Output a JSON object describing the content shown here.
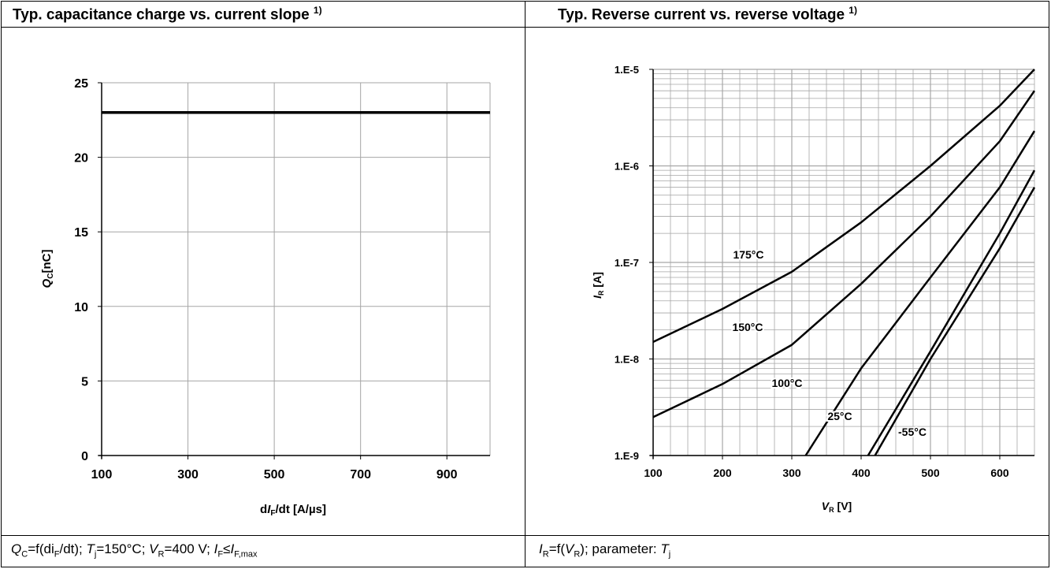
{
  "header": {
    "left_title": "Typ. capacitance charge vs. current slope",
    "left_footnote": "1)",
    "right_title": "Typ. Reverse current vs. reverse voltage",
    "right_footnote": "1)"
  },
  "footer": {
    "left": {
      "q": "Q",
      "q_sub": "C",
      "t1": "=f(di",
      "t1_sub": "F",
      "t2": "/dt); ",
      "tj": "T",
      "tj_sub": "j",
      "t3": "=150°C; ",
      "vr": "V",
      "vr_sub": "R",
      "t4": "=400 V; ",
      "if": "I",
      "if_sub": "F",
      "t5": "≤",
      "ifmax": "I",
      "ifmax_sub": "F,max"
    },
    "right": {
      "ir": "I",
      "ir_sub": "R",
      "t1": "=f(",
      "vr": "V",
      "vr_sub": "R",
      "t2": "); parameter: ",
      "tj": "T",
      "tj_sub": "j"
    }
  },
  "chart_data": [
    {
      "type": "line",
      "xlabel": "dIF/dt [A/µs]",
      "xlabel_parts": {
        "a": "d",
        "b": "I",
        "c": "F",
        "d": "/dt [A/µs]"
      },
      "ylabel": "QC[nC]",
      "ylabel_parts": {
        "a": "Q",
        "b": "C",
        "c": "[nC]"
      },
      "xlim": [
        100,
        1000
      ],
      "ylim": [
        0,
        25
      ],
      "x_ticks": [
        100,
        300,
        500,
        700,
        900
      ],
      "x_tick_labels": [
        "100",
        "300",
        "500",
        "700",
        "900"
      ],
      "y_ticks": [
        0,
        5,
        10,
        15,
        20,
        25
      ],
      "y_tick_labels": [
        "0",
        "5",
        "10",
        "15",
        "20",
        "25"
      ],
      "grid": true,
      "series": [
        {
          "x": [
            100,
            1000
          ],
          "y": [
            23,
            23
          ]
        }
      ]
    },
    {
      "type": "line",
      "xlabel": "VR [V]",
      "xlabel_parts": {
        "a": "V",
        "b": "R",
        "c": " [V]"
      },
      "ylabel": "IR [A]",
      "ylabel_parts": {
        "a": "I",
        "b": "R",
        "c": " [A]"
      },
      "xlim": [
        100,
        650
      ],
      "ylim": [
        1e-09,
        1e-05
      ],
      "yscale": "log",
      "x_ticks": [
        100,
        200,
        300,
        400,
        500,
        600
      ],
      "x_tick_labels": [
        "100",
        "200",
        "300",
        "400",
        "500",
        "600"
      ],
      "y_ticks": [
        1e-09,
        1e-08,
        1e-07,
        1e-06,
        1e-05
      ],
      "y_tick_labels": [
        "1.E-9",
        "1.E-8",
        "1.E-7",
        "1.E-6",
        "1.E-5"
      ],
      "grid": true,
      "series": [
        {
          "name": "175°C",
          "x": [
            100,
            200,
            300,
            400,
            500,
            600,
            650
          ],
          "y": [
            1.5e-08,
            3.3e-08,
            8e-08,
            2.6e-07,
            1e-06,
            4.2e-06,
            1e-05
          ]
        },
        {
          "name": "150°C",
          "x": [
            100,
            200,
            300,
            400,
            500,
            600,
            650
          ],
          "y": [
            2.5e-09,
            5.5e-09,
            1.4e-08,
            6e-08,
            3e-07,
            1.8e-06,
            6e-06
          ]
        },
        {
          "name": "100°C",
          "x": [
            320,
            400,
            500,
            600,
            650
          ],
          "y": [
            1e-09,
            8e-09,
            7e-08,
            6e-07,
            2.3e-06
          ]
        },
        {
          "name": "25°C",
          "x": [
            410,
            500,
            600,
            650
          ],
          "y": [
            1e-09,
            1.2e-08,
            2e-07,
            9e-07
          ]
        },
        {
          "name": "-55°C",
          "x": [
            420,
            500,
            600,
            650
          ],
          "y": [
            1e-09,
            1e-08,
            1.4e-07,
            6e-07
          ]
        }
      ],
      "annotations": [
        "175°C",
        "150°C",
        "100°C",
        "25°C",
        "-55°C"
      ]
    }
  ]
}
